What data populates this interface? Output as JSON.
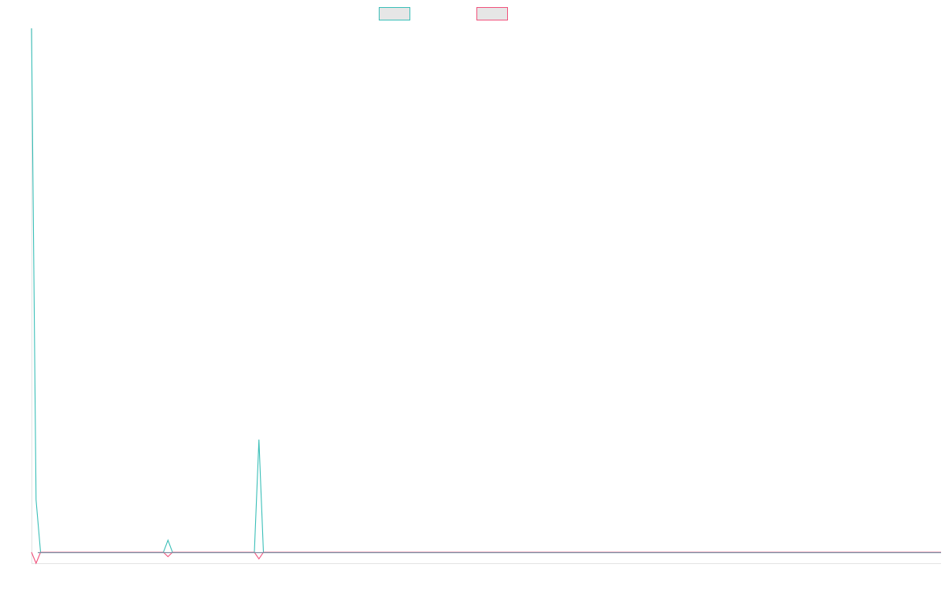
{
  "chart_data": {
    "type": "line",
    "legend_placement": "top-center",
    "grid": false,
    "x_range": [
      0,
      200
    ],
    "y_range": [
      -2,
      100
    ],
    "series": [
      {
        "color": "#3bbfb8",
        "legend_fill": "#e6e6e6",
        "points": [
          [
            0,
            100
          ],
          [
            1,
            10
          ],
          [
            2,
            0
          ],
          [
            29,
            0
          ],
          [
            30,
            2.3
          ],
          [
            31,
            0
          ],
          [
            49,
            0
          ],
          [
            50,
            21.5
          ],
          [
            51,
            0
          ],
          [
            200,
            0
          ]
        ]
      },
      {
        "color": "#f0527c",
        "legend_fill": "#e6e6e6",
        "points": [
          [
            0,
            0
          ],
          [
            1,
            -2
          ],
          [
            2,
            0
          ],
          [
            29,
            0
          ],
          [
            30,
            -0.8
          ],
          [
            31,
            0
          ],
          [
            49,
            0
          ],
          [
            50,
            -1.2
          ],
          [
            51,
            0
          ],
          [
            200,
            0
          ]
        ]
      }
    ]
  }
}
